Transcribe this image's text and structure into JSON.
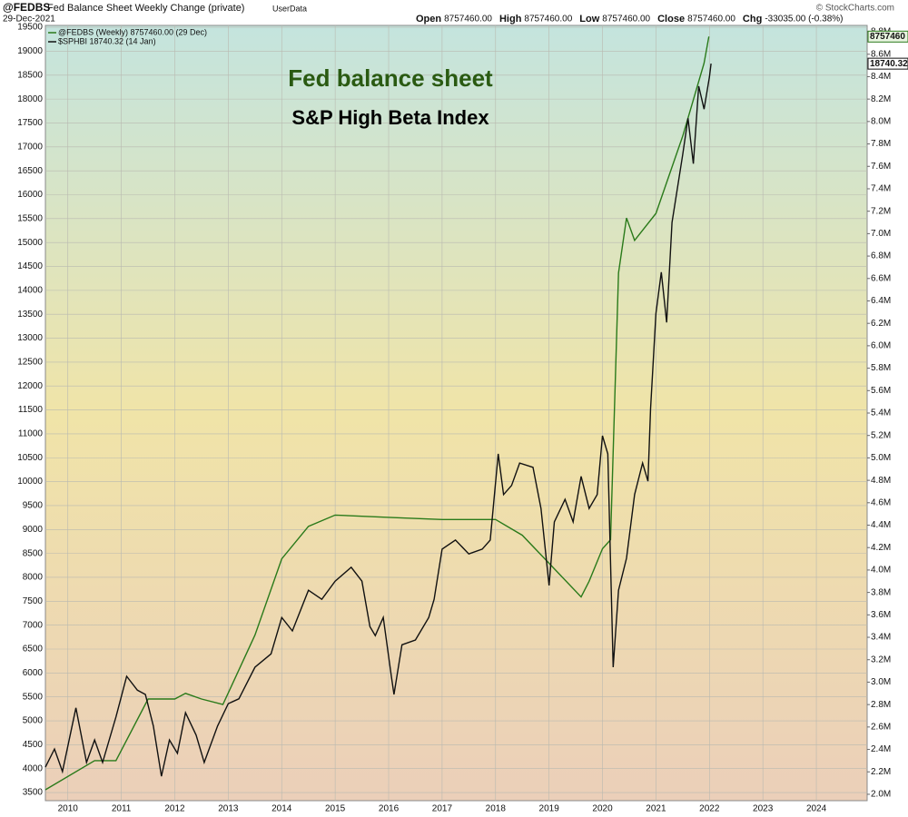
{
  "header": {
    "symbol": "@FEDBS",
    "name": "Fed Balance Sheet Weekly Change (private)",
    "source": "UserData",
    "date": "29-Dec-2021",
    "quote": [
      {
        "label": "Open",
        "value": "8757460.00"
      },
      {
        "label": "High",
        "value": "8757460.00"
      },
      {
        "label": "Low",
        "value": "8757460.00"
      },
      {
        "label": "Close",
        "value": "8757460.00"
      },
      {
        "label": "Chg",
        "value": "-33035.00 (-0.38%)"
      }
    ],
    "copyright": "© StockCharts.com"
  },
  "chart_data": {
    "type": "line",
    "annotations": [
      "Fed balance sheet",
      "S&P High Beta Index"
    ],
    "xlim": [
      2009.58,
      2024.95
    ],
    "xticks": [
      2010,
      2011,
      2012,
      2013,
      2014,
      2015,
      2016,
      2017,
      2018,
      2019,
      2020,
      2021,
      2022,
      2023,
      2024
    ],
    "ylim": [
      3330,
      19540
    ],
    "yticks": [
      3500,
      4000,
      4500,
      5000,
      5500,
      6000,
      6500,
      7000,
      7500,
      8000,
      8500,
      9000,
      9500,
      10000,
      10500,
      11000,
      11500,
      12000,
      12500,
      13000,
      13500,
      14000,
      14500,
      15000,
      15500,
      16000,
      16500,
      17000,
      17500,
      18000,
      18500,
      19000,
      19500
    ],
    "y2lim": [
      1943000,
      8857000
    ],
    "y2ticks": [
      {
        "value": 2000000,
        "label": "2.0M"
      },
      {
        "value": 2200000,
        "label": "2.2M"
      },
      {
        "value": 2400000,
        "label": "2.4M"
      },
      {
        "value": 2600000,
        "label": "2.6M"
      },
      {
        "value": 2800000,
        "label": "2.8M"
      },
      {
        "value": 3000000,
        "label": "3.0M"
      },
      {
        "value": 3200000,
        "label": "3.2M"
      },
      {
        "value": 3400000,
        "label": "3.4M"
      },
      {
        "value": 3600000,
        "label": "3.6M"
      },
      {
        "value": 3800000,
        "label": "3.8M"
      },
      {
        "value": 4000000,
        "label": "4.0M"
      },
      {
        "value": 4200000,
        "label": "4.2M"
      },
      {
        "value": 4400000,
        "label": "4.4M"
      },
      {
        "value": 4600000,
        "label": "4.6M"
      },
      {
        "value": 4800000,
        "label": "4.8M"
      },
      {
        "value": 5000000,
        "label": "5.0M"
      },
      {
        "value": 5200000,
        "label": "5.2M"
      },
      {
        "value": 5400000,
        "label": "5.4M"
      },
      {
        "value": 5600000,
        "label": "5.6M"
      },
      {
        "value": 5800000,
        "label": "5.8M"
      },
      {
        "value": 6000000,
        "label": "6.0M"
      },
      {
        "value": 6200000,
        "label": "6.2M"
      },
      {
        "value": 6400000,
        "label": "6.4M"
      },
      {
        "value": 6600000,
        "label": "6.6M"
      },
      {
        "value": 6800000,
        "label": "6.8M"
      },
      {
        "value": 7000000,
        "label": "7.0M"
      },
      {
        "value": 7200000,
        "label": "7.2M"
      },
      {
        "value": 7400000,
        "label": "7.4M"
      },
      {
        "value": 7600000,
        "label": "7.6M"
      },
      {
        "value": 7800000,
        "label": "7.8M"
      },
      {
        "value": 8000000,
        "label": "8.0M"
      },
      {
        "value": 8200000,
        "label": "8.2M"
      },
      {
        "value": 8400000,
        "label": "8.4M"
      },
      {
        "value": 8600000,
        "label": "8.6M"
      },
      {
        "value": 8800000,
        "label": "8.8M"
      }
    ],
    "grid": true,
    "series": [
      {
        "name": "@FEDBS (Weekly) 8757460.00 (29 Dec)",
        "color": "#2a7a1a",
        "axis": "y2",
        "end_label": "8757460",
        "x": [
          2009.58,
          2010.5,
          2010.9,
          2011.5,
          2012.0,
          2012.2,
          2012.5,
          2012.9,
          2013.5,
          2014.0,
          2014.5,
          2015.0,
          2016.0,
          2017.0,
          2018.0,
          2018.5,
          2019.0,
          2019.6,
          2019.75,
          2020.0,
          2020.15,
          2020.3,
          2020.45,
          2020.6,
          2021.0,
          2021.5,
          2021.9,
          2021.99
        ],
        "values": [
          2040000,
          2300000,
          2300000,
          2850000,
          2850000,
          2900000,
          2850000,
          2800000,
          3420000,
          4100000,
          4390000,
          4490000,
          4470000,
          4450000,
          4450000,
          4310000,
          4060000,
          3760000,
          3900000,
          4190000,
          4270000,
          6650000,
          7140000,
          6940000,
          7180000,
          7870000,
          8520000,
          8757460
        ]
      },
      {
        "name": "$SPHBI 18740.32 (14 Jan)",
        "color": "#111111",
        "end_label": "18740.32",
        "x": [
          2009.58,
          2009.75,
          2009.9,
          2010.15,
          2010.35,
          2010.5,
          2010.65,
          2010.9,
          2011.1,
          2011.3,
          2011.45,
          2011.6,
          2011.75,
          2011.9,
          2012.05,
          2012.2,
          2012.4,
          2012.55,
          2012.8,
          2013.0,
          2013.2,
          2013.5,
          2013.8,
          2014.0,
          2014.2,
          2014.5,
          2014.75,
          2015.0,
          2015.3,
          2015.5,
          2015.65,
          2015.75,
          2015.9,
          2016.05,
          2016.1,
          2016.25,
          2016.5,
          2016.75,
          2016.85,
          2017.0,
          2017.25,
          2017.5,
          2017.75,
          2017.9,
          2018.05,
          2018.15,
          2018.3,
          2018.45,
          2018.7,
          2018.85,
          2019.0,
          2019.1,
          2019.3,
          2019.45,
          2019.6,
          2019.75,
          2019.9,
          2020.0,
          2020.1,
          2020.2,
          2020.3,
          2020.45,
          2020.6,
          2020.75,
          2020.85,
          2020.9,
          2021.0,
          2021.1,
          2021.2,
          2021.3,
          2021.5,
          2021.6,
          2021.7,
          2021.8,
          2021.9,
          2022.0,
          2022.03
        ],
        "values": [
          4030,
          4410,
          3940,
          5270,
          4130,
          4600,
          4130,
          5080,
          5930,
          5640,
          5550,
          4890,
          3840,
          4600,
          4320,
          5170,
          4700,
          4130,
          4890,
          5360,
          5460,
          6120,
          6400,
          7160,
          6880,
          7730,
          7540,
          7920,
          8210,
          7920,
          6970,
          6780,
          7160,
          5930,
          5550,
          6590,
          6690,
          7160,
          7540,
          8590,
          8780,
          8490,
          8590,
          8780,
          10580,
          9730,
          9920,
          10390,
          10300,
          9440,
          7830,
          9160,
          9630,
          9160,
          10110,
          9440,
          9730,
          10960,
          10580,
          6120,
          7730,
          8400,
          9730,
          10390,
          10010,
          11530,
          13520,
          14380,
          13330,
          15420,
          16840,
          17600,
          16650,
          18270,
          17790,
          18460,
          18740.32
        ]
      }
    ]
  }
}
